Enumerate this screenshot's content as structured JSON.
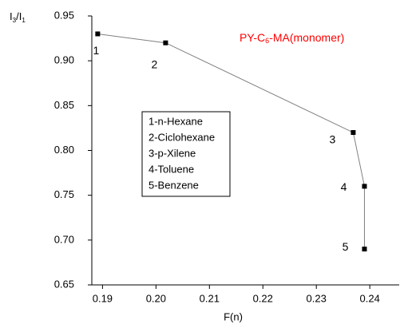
{
  "chart_data": {
    "type": "line",
    "title_parts": [
      "PY-C",
      "6",
      "-MA(monomer)"
    ],
    "title_color": "#ff0000",
    "y_label_parts": [
      "I",
      "3",
      "/I",
      "1"
    ],
    "x_label": "F(n)",
    "x": [
      0.1891,
      0.2018,
      0.2369,
      0.239,
      0.239
    ],
    "series": [
      {
        "name": "PY-C6-MA",
        "color": "#000000",
        "line_color": "#808080",
        "values": [
          0.93,
          0.92,
          0.82,
          0.76,
          0.69
        ]
      }
    ],
    "point_labels": [
      "1",
      "2",
      "3",
      "4",
      "5"
    ],
    "legend_box": [
      "1-n-Hexane",
      "2-Ciclohexane",
      "3-p-Xilene",
      "4-Toluene",
      "5-Benzene"
    ],
    "xlim": [
      0.188,
      0.2455
    ],
    "ylim": [
      0.65,
      0.95
    ],
    "xticks": [
      0.19,
      {
        "value": 0.2,
        "label": "0.20"
      },
      0.21,
      0.22,
      0.23,
      0.24
    ],
    "yticks": [
      0.65,
      {
        "value": 0.7,
        "label": "0.70"
      },
      0.75,
      {
        "value": 0.8,
        "label": "0.80"
      },
      0.85,
      {
        "value": 0.9,
        "label": "0.90"
      },
      0.95
    ],
    "grid": false
  }
}
